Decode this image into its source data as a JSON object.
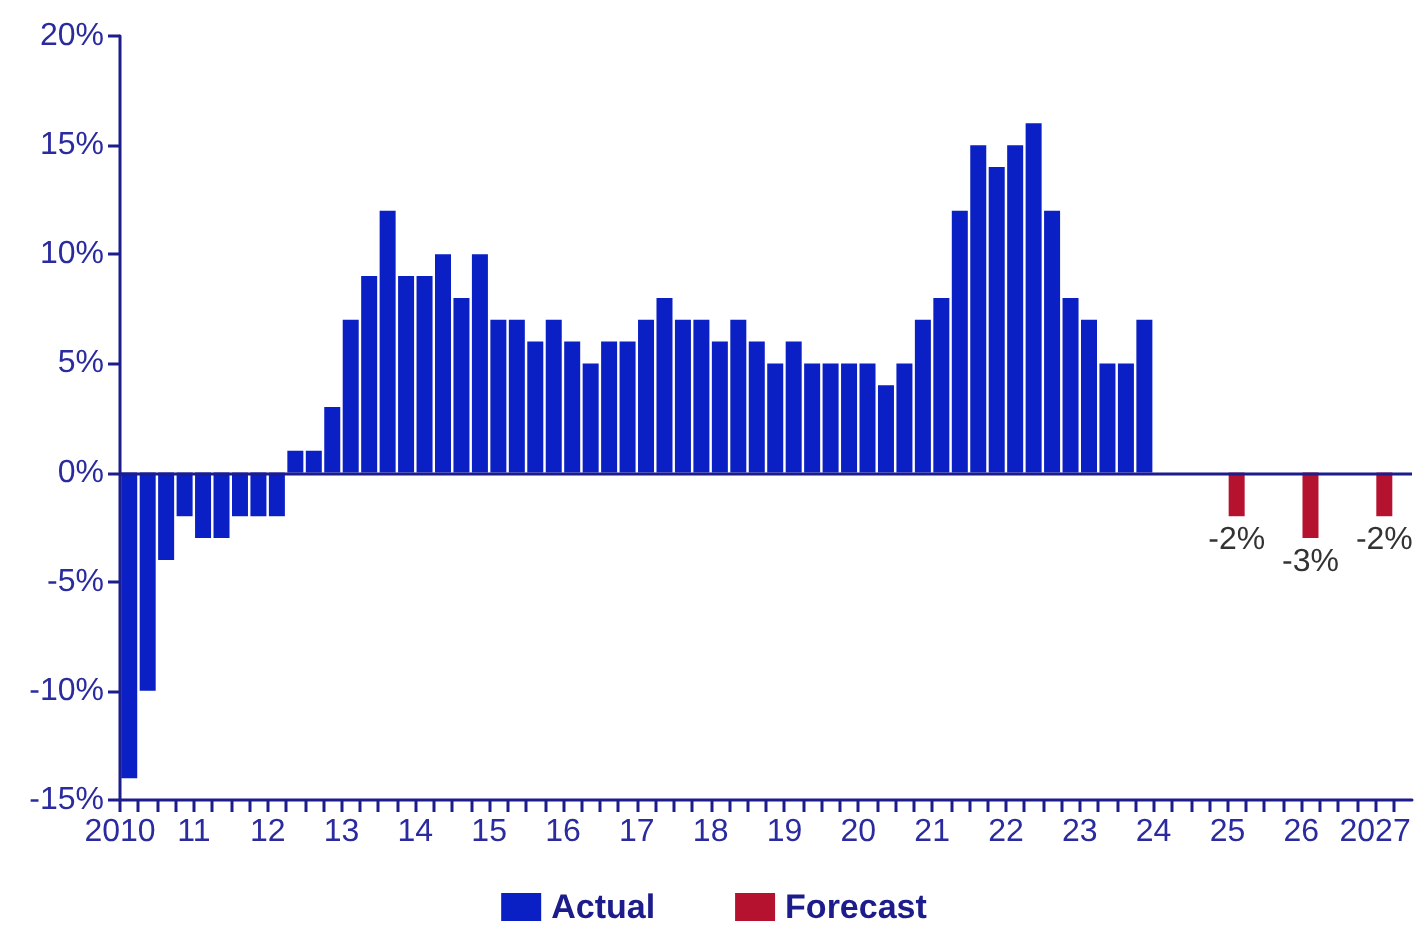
{
  "chart_data": {
    "type": "bar",
    "legend": "bottom",
    "grid": false,
    "xlim": [
      2010,
      2027.5
    ],
    "xticks": [
      {
        "value": 2010,
        "label": "2010"
      },
      {
        "value": 2010.25,
        "label": null
      },
      {
        "value": 2010.5,
        "label": null
      },
      {
        "value": 2010.75,
        "label": null
      },
      {
        "value": 2011,
        "label": "11"
      },
      {
        "value": 2011.25,
        "label": null
      },
      {
        "value": 2011.5,
        "label": null
      },
      {
        "value": 2011.75,
        "label": null
      },
      {
        "value": 2012,
        "label": "12"
      },
      {
        "value": 2012.25,
        "label": null
      },
      {
        "value": 2012.5,
        "label": null
      },
      {
        "value": 2012.75,
        "label": null
      },
      {
        "value": 2013,
        "label": "13"
      },
      {
        "value": 2013.25,
        "label": null
      },
      {
        "value": 2013.5,
        "label": null
      },
      {
        "value": 2013.75,
        "label": null
      },
      {
        "value": 2014,
        "label": "14"
      },
      {
        "value": 2014.25,
        "label": null
      },
      {
        "value": 2014.5,
        "label": null
      },
      {
        "value": 2014.75,
        "label": null
      },
      {
        "value": 2015,
        "label": "15"
      },
      {
        "value": 2015.25,
        "label": null
      },
      {
        "value": 2015.5,
        "label": null
      },
      {
        "value": 2015.75,
        "label": null
      },
      {
        "value": 2016,
        "label": "16"
      },
      {
        "value": 2016.25,
        "label": null
      },
      {
        "value": 2016.5,
        "label": null
      },
      {
        "value": 2016.75,
        "label": null
      },
      {
        "value": 2017,
        "label": "17"
      },
      {
        "value": 2017.25,
        "label": null
      },
      {
        "value": 2017.5,
        "label": null
      },
      {
        "value": 2017.75,
        "label": null
      },
      {
        "value": 2018,
        "label": "18"
      },
      {
        "value": 2018.25,
        "label": null
      },
      {
        "value": 2018.5,
        "label": null
      },
      {
        "value": 2018.75,
        "label": null
      },
      {
        "value": 2019,
        "label": "19"
      },
      {
        "value": 2019.25,
        "label": null
      },
      {
        "value": 2019.5,
        "label": null
      },
      {
        "value": 2019.75,
        "label": null
      },
      {
        "value": 2020,
        "label": "20"
      },
      {
        "value": 2020.25,
        "label": null
      },
      {
        "value": 2020.5,
        "label": null
      },
      {
        "value": 2020.75,
        "label": null
      },
      {
        "value": 2021,
        "label": "21"
      },
      {
        "value": 2021.25,
        "label": null
      },
      {
        "value": 2021.5,
        "label": null
      },
      {
        "value": 2021.75,
        "label": null
      },
      {
        "value": 2022,
        "label": "22"
      },
      {
        "value": 2022.25,
        "label": null
      },
      {
        "value": 2022.5,
        "label": null
      },
      {
        "value": 2022.75,
        "label": null
      },
      {
        "value": 2023,
        "label": "23"
      },
      {
        "value": 2023.25,
        "label": null
      },
      {
        "value": 2023.5,
        "label": null
      },
      {
        "value": 2023.75,
        "label": null
      },
      {
        "value": 2024,
        "label": "24"
      },
      {
        "value": 2024.25,
        "label": null
      },
      {
        "value": 2024.5,
        "label": null
      },
      {
        "value": 2024.75,
        "label": null
      },
      {
        "value": 2025,
        "label": "25"
      },
      {
        "value": 2025.25,
        "label": null
      },
      {
        "value": 2025.5,
        "label": null
      },
      {
        "value": 2025.75,
        "label": null
      },
      {
        "value": 2026,
        "label": "26"
      },
      {
        "value": 2026.25,
        "label": null
      },
      {
        "value": 2026.5,
        "label": null
      },
      {
        "value": 2026.75,
        "label": null
      },
      {
        "value": 2027,
        "label": "2027"
      },
      {
        "value": 2027.25,
        "label": null
      }
    ],
    "ylim": [
      -15,
      20
    ],
    "yticks": [
      {
        "value": -15,
        "label": "-15%"
      },
      {
        "value": -10,
        "label": "-10%"
      },
      {
        "value": -5,
        "label": "-5%"
      },
      {
        "value": 0,
        "label": "0%"
      },
      {
        "value": 5,
        "label": "5%"
      },
      {
        "value": 10,
        "label": "10%"
      },
      {
        "value": 15,
        "label": "15%"
      },
      {
        "value": 20,
        "label": "20%"
      }
    ],
    "ref_lines": [
      {
        "axis": "y",
        "value": 0,
        "color": "#1c1c8c"
      }
    ],
    "series": [
      {
        "name": "Actual",
        "color": "#0a1fc4",
        "x": [
          2010.125,
          2010.375,
          2010.625,
          2010.875,
          2011.125,
          2011.375,
          2011.625,
          2011.875,
          2012.125,
          2012.375,
          2012.625,
          2012.875,
          2013.125,
          2013.375,
          2013.625,
          2013.875,
          2014.125,
          2014.375,
          2014.625,
          2014.875,
          2015.125,
          2015.375,
          2015.625,
          2015.875,
          2016.125,
          2016.375,
          2016.625,
          2016.875,
          2017.125,
          2017.375,
          2017.625,
          2017.875,
          2018.125,
          2018.375,
          2018.625,
          2018.875,
          2019.125,
          2019.375,
          2019.625,
          2019.875,
          2020.125,
          2020.375,
          2020.625,
          2020.875,
          2021.125,
          2021.375,
          2021.625,
          2021.875,
          2022.125,
          2022.375,
          2022.625,
          2022.875,
          2023.125,
          2023.375,
          2023.625,
          2023.875
        ],
        "values": [
          -14,
          -10,
          -4,
          -2,
          -3,
          -3,
          -2,
          -2,
          -2,
          1,
          1,
          3,
          7,
          9,
          12,
          9,
          9,
          10,
          8,
          10,
          7,
          7,
          6,
          7,
          6,
          5,
          6,
          6,
          7,
          8,
          7,
          7,
          6,
          7,
          6,
          5,
          6,
          5,
          5,
          5,
          5,
          4,
          5,
          7,
          8,
          12,
          15,
          14,
          15,
          16,
          12,
          8,
          7,
          5,
          5,
          7
        ]
      },
      {
        "name": "Forecast",
        "color": "#b5122f",
        "x": [
          2025.125,
          2026.125,
          2027.125
        ],
        "values": [
          -2,
          -3,
          -2
        ],
        "value_labels": [
          "-2%",
          "-3%",
          "-2%"
        ]
      }
    ]
  }
}
